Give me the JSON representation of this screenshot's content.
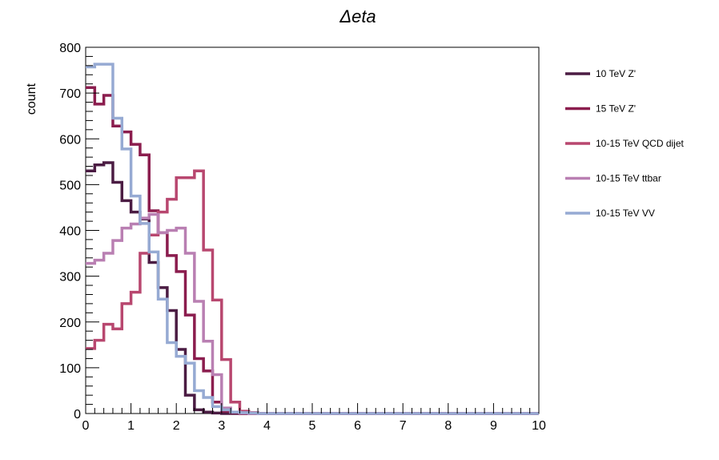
{
  "chart_data": {
    "type": "histogram",
    "title": "Δeta",
    "xlabel": "",
    "ylabel": "count",
    "xlim": [
      0,
      10
    ],
    "ylim": [
      0,
      800
    ],
    "bin_width": 0.2,
    "x_ticks": [
      "0",
      "1",
      "2",
      "3",
      "4",
      "5",
      "6",
      "7",
      "8",
      "9",
      "10"
    ],
    "y_ticks": [
      "0",
      "100",
      "200",
      "300",
      "400",
      "500",
      "600",
      "700",
      "800"
    ],
    "grid": false,
    "legend_position": "right",
    "series": [
      {
        "name": "10 TeV Z'",
        "color": "#4b1c43",
        "values": [
          530,
          543,
          548,
          505,
          465,
          440,
          425,
          330,
          275,
          225,
          140,
          40,
          8,
          3,
          1,
          0,
          0,
          0,
          0,
          0,
          0,
          0,
          0,
          0,
          0,
          0,
          0,
          0,
          0,
          0,
          0,
          0,
          0,
          0,
          0,
          0,
          0,
          0,
          0,
          0,
          0,
          0,
          0,
          0,
          0,
          0,
          0,
          0,
          0,
          0
        ]
      },
      {
        "name": "15 TeV Z'",
        "color": "#8b1d4e",
        "values": [
          712,
          676,
          695,
          628,
          615,
          588,
          565,
          443,
          395,
          345,
          310,
          215,
          120,
          93,
          25,
          5,
          2,
          0,
          0,
          0,
          0,
          0,
          0,
          0,
          0,
          0,
          0,
          0,
          0,
          0,
          0,
          0,
          0,
          0,
          0,
          0,
          0,
          0,
          0,
          0,
          0,
          0,
          0,
          0,
          0,
          0,
          0,
          0,
          0,
          0
        ]
      },
      {
        "name": "10-15 TeV QCD dijet",
        "color": "#b8476f",
        "values": [
          142,
          160,
          195,
          185,
          240,
          265,
          350,
          390,
          440,
          468,
          515,
          515,
          530,
          357,
          248,
          118,
          25,
          5,
          2,
          0,
          0,
          0,
          0,
          0,
          0,
          0,
          0,
          0,
          0,
          0,
          0,
          0,
          0,
          0,
          0,
          0,
          0,
          0,
          0,
          0,
          0,
          0,
          0,
          0,
          0,
          0,
          0,
          0,
          0,
          0
        ]
      },
      {
        "name": "10-15 TeV ttbar",
        "color": "#b97fb2",
        "values": [
          328,
          335,
          350,
          378,
          405,
          414,
          427,
          435,
          395,
          400,
          405,
          350,
          245,
          158,
          85,
          12,
          3,
          1,
          0,
          0,
          0,
          0,
          0,
          0,
          0,
          0,
          0,
          0,
          0,
          0,
          0,
          0,
          0,
          0,
          0,
          0,
          0,
          0,
          0,
          0,
          0,
          0,
          0,
          0,
          0,
          0,
          0,
          0,
          0,
          0
        ]
      },
      {
        "name": "10-15 TeV VV",
        "color": "#96aad3",
        "values": [
          757,
          763,
          763,
          645,
          578,
          475,
          415,
          353,
          250,
          155,
          125,
          110,
          50,
          35,
          15,
          8,
          3,
          2,
          1,
          0,
          0,
          0,
          0,
          0,
          0,
          0,
          0,
          0,
          0,
          0,
          0,
          0,
          0,
          0,
          0,
          0,
          0,
          0,
          0,
          0,
          0,
          0,
          0,
          0,
          0,
          0,
          0,
          0,
          0,
          0
        ]
      }
    ]
  }
}
